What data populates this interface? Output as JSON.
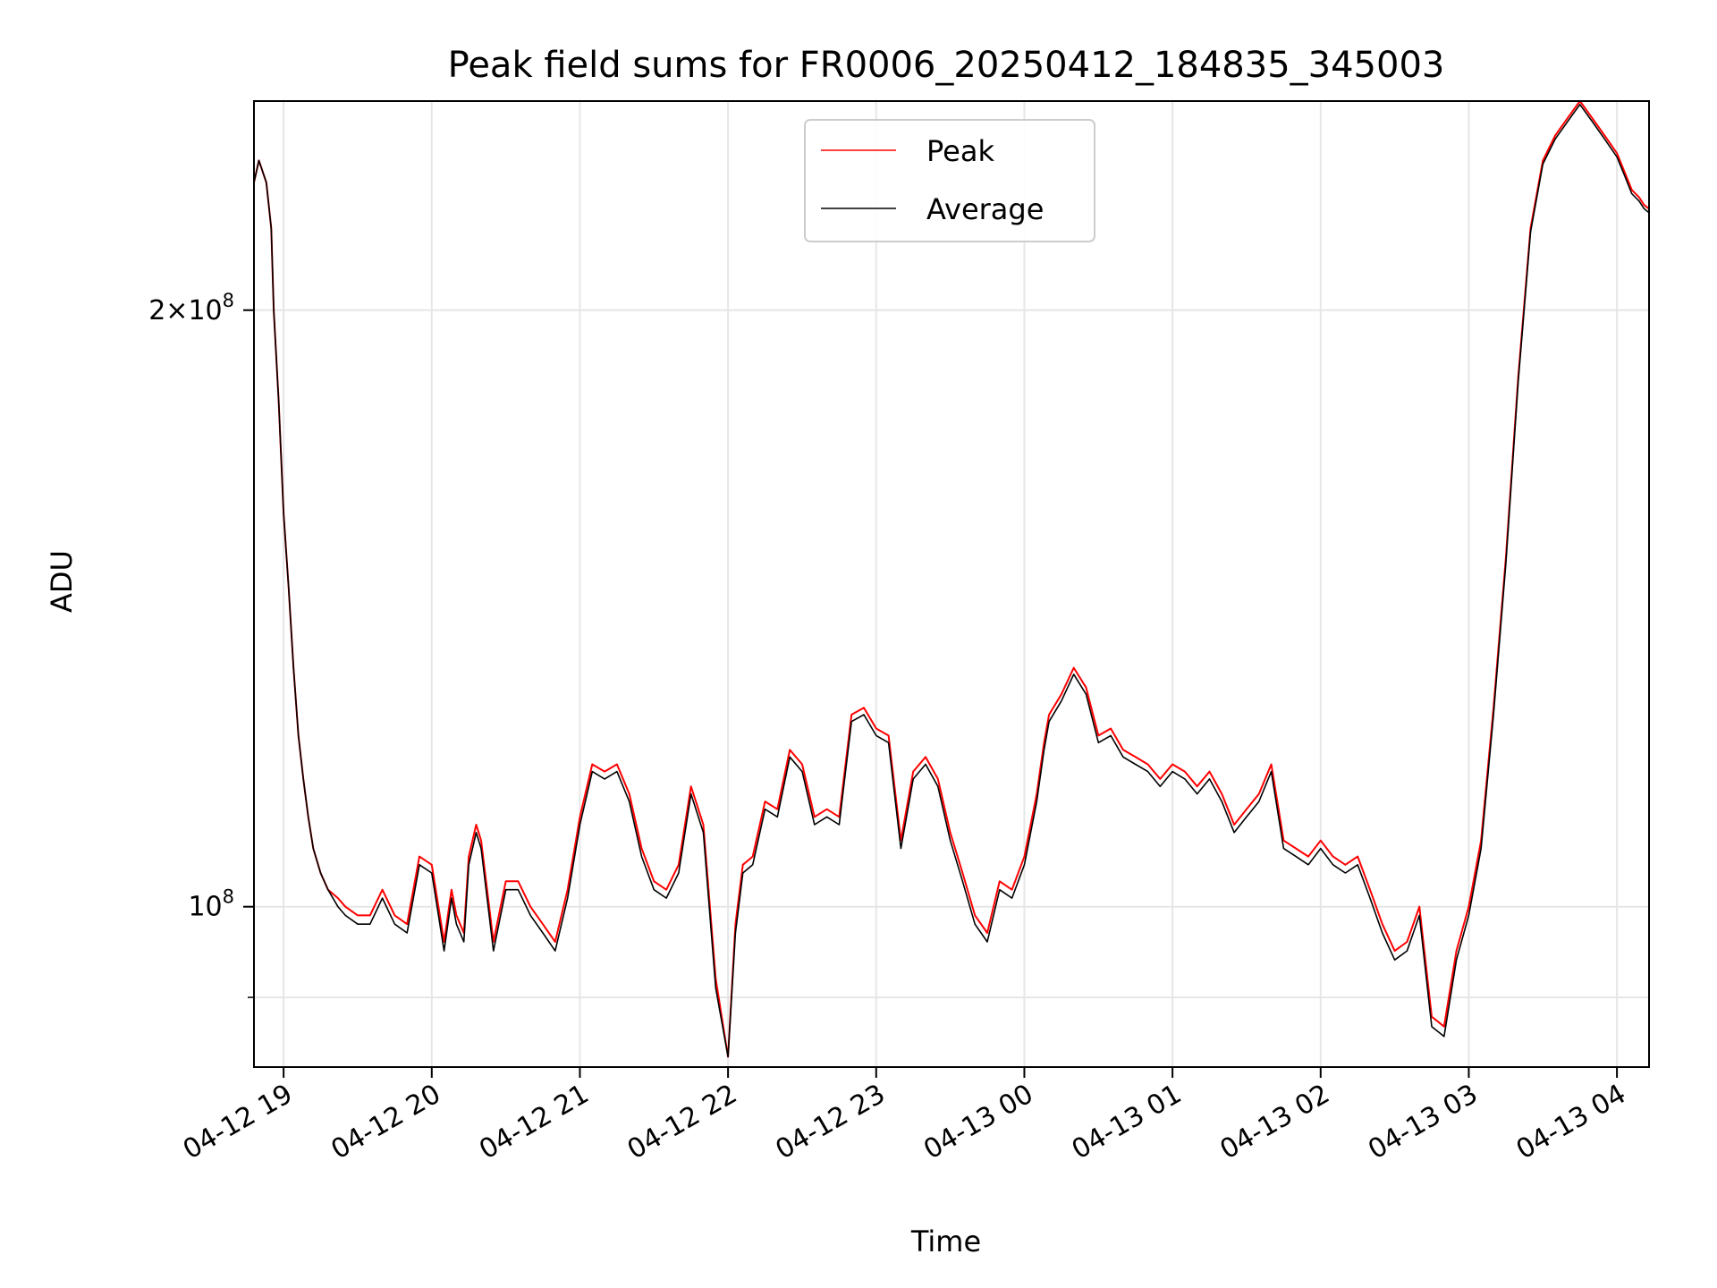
{
  "chart_data": {
    "type": "line",
    "title": "Peak field sums for FR0006_20250412_184835_345003",
    "xlabel": "Time",
    "ylabel": "ADU",
    "yscale": "log",
    "grid": true,
    "legend_position": "top-center",
    "x_tick_labels": [
      "04-12 19",
      "04-12 20",
      "04-12 21",
      "04-12 22",
      "04-12 23",
      "04-13 00",
      "04-13 01",
      "04-13 02",
      "04-13 03",
      "04-13 04"
    ],
    "y_major_ticks": [
      {
        "value": 100000000,
        "mantissa": "",
        "exponent": "8"
      },
      {
        "value": 200000000,
        "mantissa": "2×",
        "exponent": "8"
      }
    ],
    "y_minor_ticks": [
      90000000
    ],
    "x_range": [
      "2025-04-12 18:48",
      "2025-04-13 04:13"
    ],
    "ylim": [
      83000000,
      255000000
    ],
    "colors": {
      "peak": "#ff0000",
      "average": "#000000"
    },
    "x": [
      "18:48",
      "18:50",
      "18:53",
      "18:55",
      "18:56",
      "18:58",
      "19:00",
      "19:02",
      "19:04",
      "19:06",
      "19:08",
      "19:10",
      "19:12",
      "19:15",
      "19:18",
      "19:22",
      "19:25",
      "19:30",
      "19:35",
      "19:40",
      "19:45",
      "19:50",
      "19:55",
      "20:00",
      "20:05",
      "20:08",
      "20:10",
      "20:13",
      "20:15",
      "20:18",
      "20:20",
      "20:25",
      "20:30",
      "20:35",
      "20:40",
      "20:45",
      "20:50",
      "20:55",
      "21:00",
      "21:05",
      "21:10",
      "21:15",
      "21:20",
      "21:25",
      "21:30",
      "21:35",
      "21:40",
      "21:45",
      "21:50",
      "21:55",
      "22:00",
      "22:03",
      "22:06",
      "22:10",
      "22:15",
      "22:20",
      "22:25",
      "22:30",
      "22:35",
      "22:40",
      "22:45",
      "22:50",
      "22:55",
      "23:00",
      "23:05",
      "23:10",
      "23:15",
      "23:20",
      "23:25",
      "23:30",
      "23:35",
      "23:40",
      "23:45",
      "23:50",
      "23:55",
      "00:00",
      "00:05",
      "00:08",
      "00:10",
      "00:15",
      "00:20",
      "00:25",
      "00:30",
      "00:35",
      "00:40",
      "00:45",
      "00:50",
      "00:55",
      "01:00",
      "01:05",
      "01:10",
      "01:15",
      "01:20",
      "01:25",
      "01:30",
      "01:35",
      "01:40",
      "01:45",
      "01:50",
      "01:55",
      "02:00",
      "02:05",
      "02:10",
      "02:15",
      "02:20",
      "02:25",
      "02:30",
      "02:35",
      "02:40",
      "02:45",
      "02:50",
      "02:55",
      "03:00",
      "03:05",
      "03:10",
      "03:15",
      "03:20",
      "03:25",
      "03:30",
      "03:35",
      "03:40",
      "03:45",
      "03:50",
      "03:55",
      "04:00",
      "04:03",
      "04:06",
      "04:09",
      "04:11",
      "04:13"
    ],
    "series": [
      {
        "name": "Peak",
        "color": "#ff0000",
        "values": [
          232,
          238,
          232,
          220,
          200,
          180,
          158,
          145,
          132,
          122,
          116,
          111,
          107,
          104,
          102,
          101,
          100,
          99,
          99,
          102,
          99,
          98,
          106,
          105,
          96,
          102,
          99,
          97,
          106,
          110,
          108,
          96,
          103,
          103,
          100,
          98,
          96,
          102,
          111,
          118,
          117,
          118,
          114,
          107,
          103,
          102,
          105,
          115,
          110,
          92,
          84,
          98,
          105,
          106,
          113,
          112,
          120,
          118,
          111,
          112,
          111,
          125,
          126,
          123,
          122,
          108,
          117,
          119,
          116,
          109,
          104,
          99,
          97,
          103,
          102,
          106,
          114,
          121,
          125,
          128,
          132,
          129,
          122,
          123,
          120,
          119,
          118,
          116,
          118,
          117,
          115,
          117,
          114,
          110,
          112,
          114,
          118,
          108,
          107,
          106,
          108,
          106,
          105,
          106,
          102,
          98,
          95,
          96,
          100,
          88,
          87,
          95,
          100,
          108,
          126,
          150,
          185,
          220,
          238,
          245,
          250,
          255,
          250,
          245,
          240,
          235,
          230,
          228,
          226,
          225
        ]
      },
      {
        "name": "Average",
        "color": "#000000",
        "values": [
          232,
          238,
          232,
          220,
          200,
          180,
          158,
          145,
          132,
          122,
          116,
          111,
          107,
          104,
          102,
          100,
          99,
          98,
          98,
          101,
          98,
          97,
          105,
          104,
          95,
          101,
          98,
          96,
          105,
          109,
          107,
          95,
          102,
          102,
          99,
          97,
          95,
          101,
          110,
          117,
          116,
          117,
          113,
          106,
          102,
          101,
          104,
          114,
          109,
          91,
          84,
          97,
          104,
          105,
          112,
          111,
          119,
          117,
          110,
          111,
          110,
          124,
          125,
          122,
          121,
          107,
          116,
          118,
          115,
          108,
          103,
          98,
          96,
          102,
          101,
          105,
          113,
          120,
          124,
          127,
          131,
          128,
          121,
          122,
          119,
          118,
          117,
          115,
          117,
          116,
          114,
          116,
          113,
          109,
          111,
          113,
          117,
          107,
          106,
          105,
          107,
          105,
          104,
          105,
          101,
          97,
          94,
          95,
          99,
          87,
          86,
          94,
          99,
          107,
          125,
          149,
          184,
          219,
          237,
          244,
          249,
          254,
          249,
          244,
          239,
          234,
          229,
          227,
          225,
          224
        ]
      }
    ],
    "value_unit_multiplier": 1000000
  }
}
